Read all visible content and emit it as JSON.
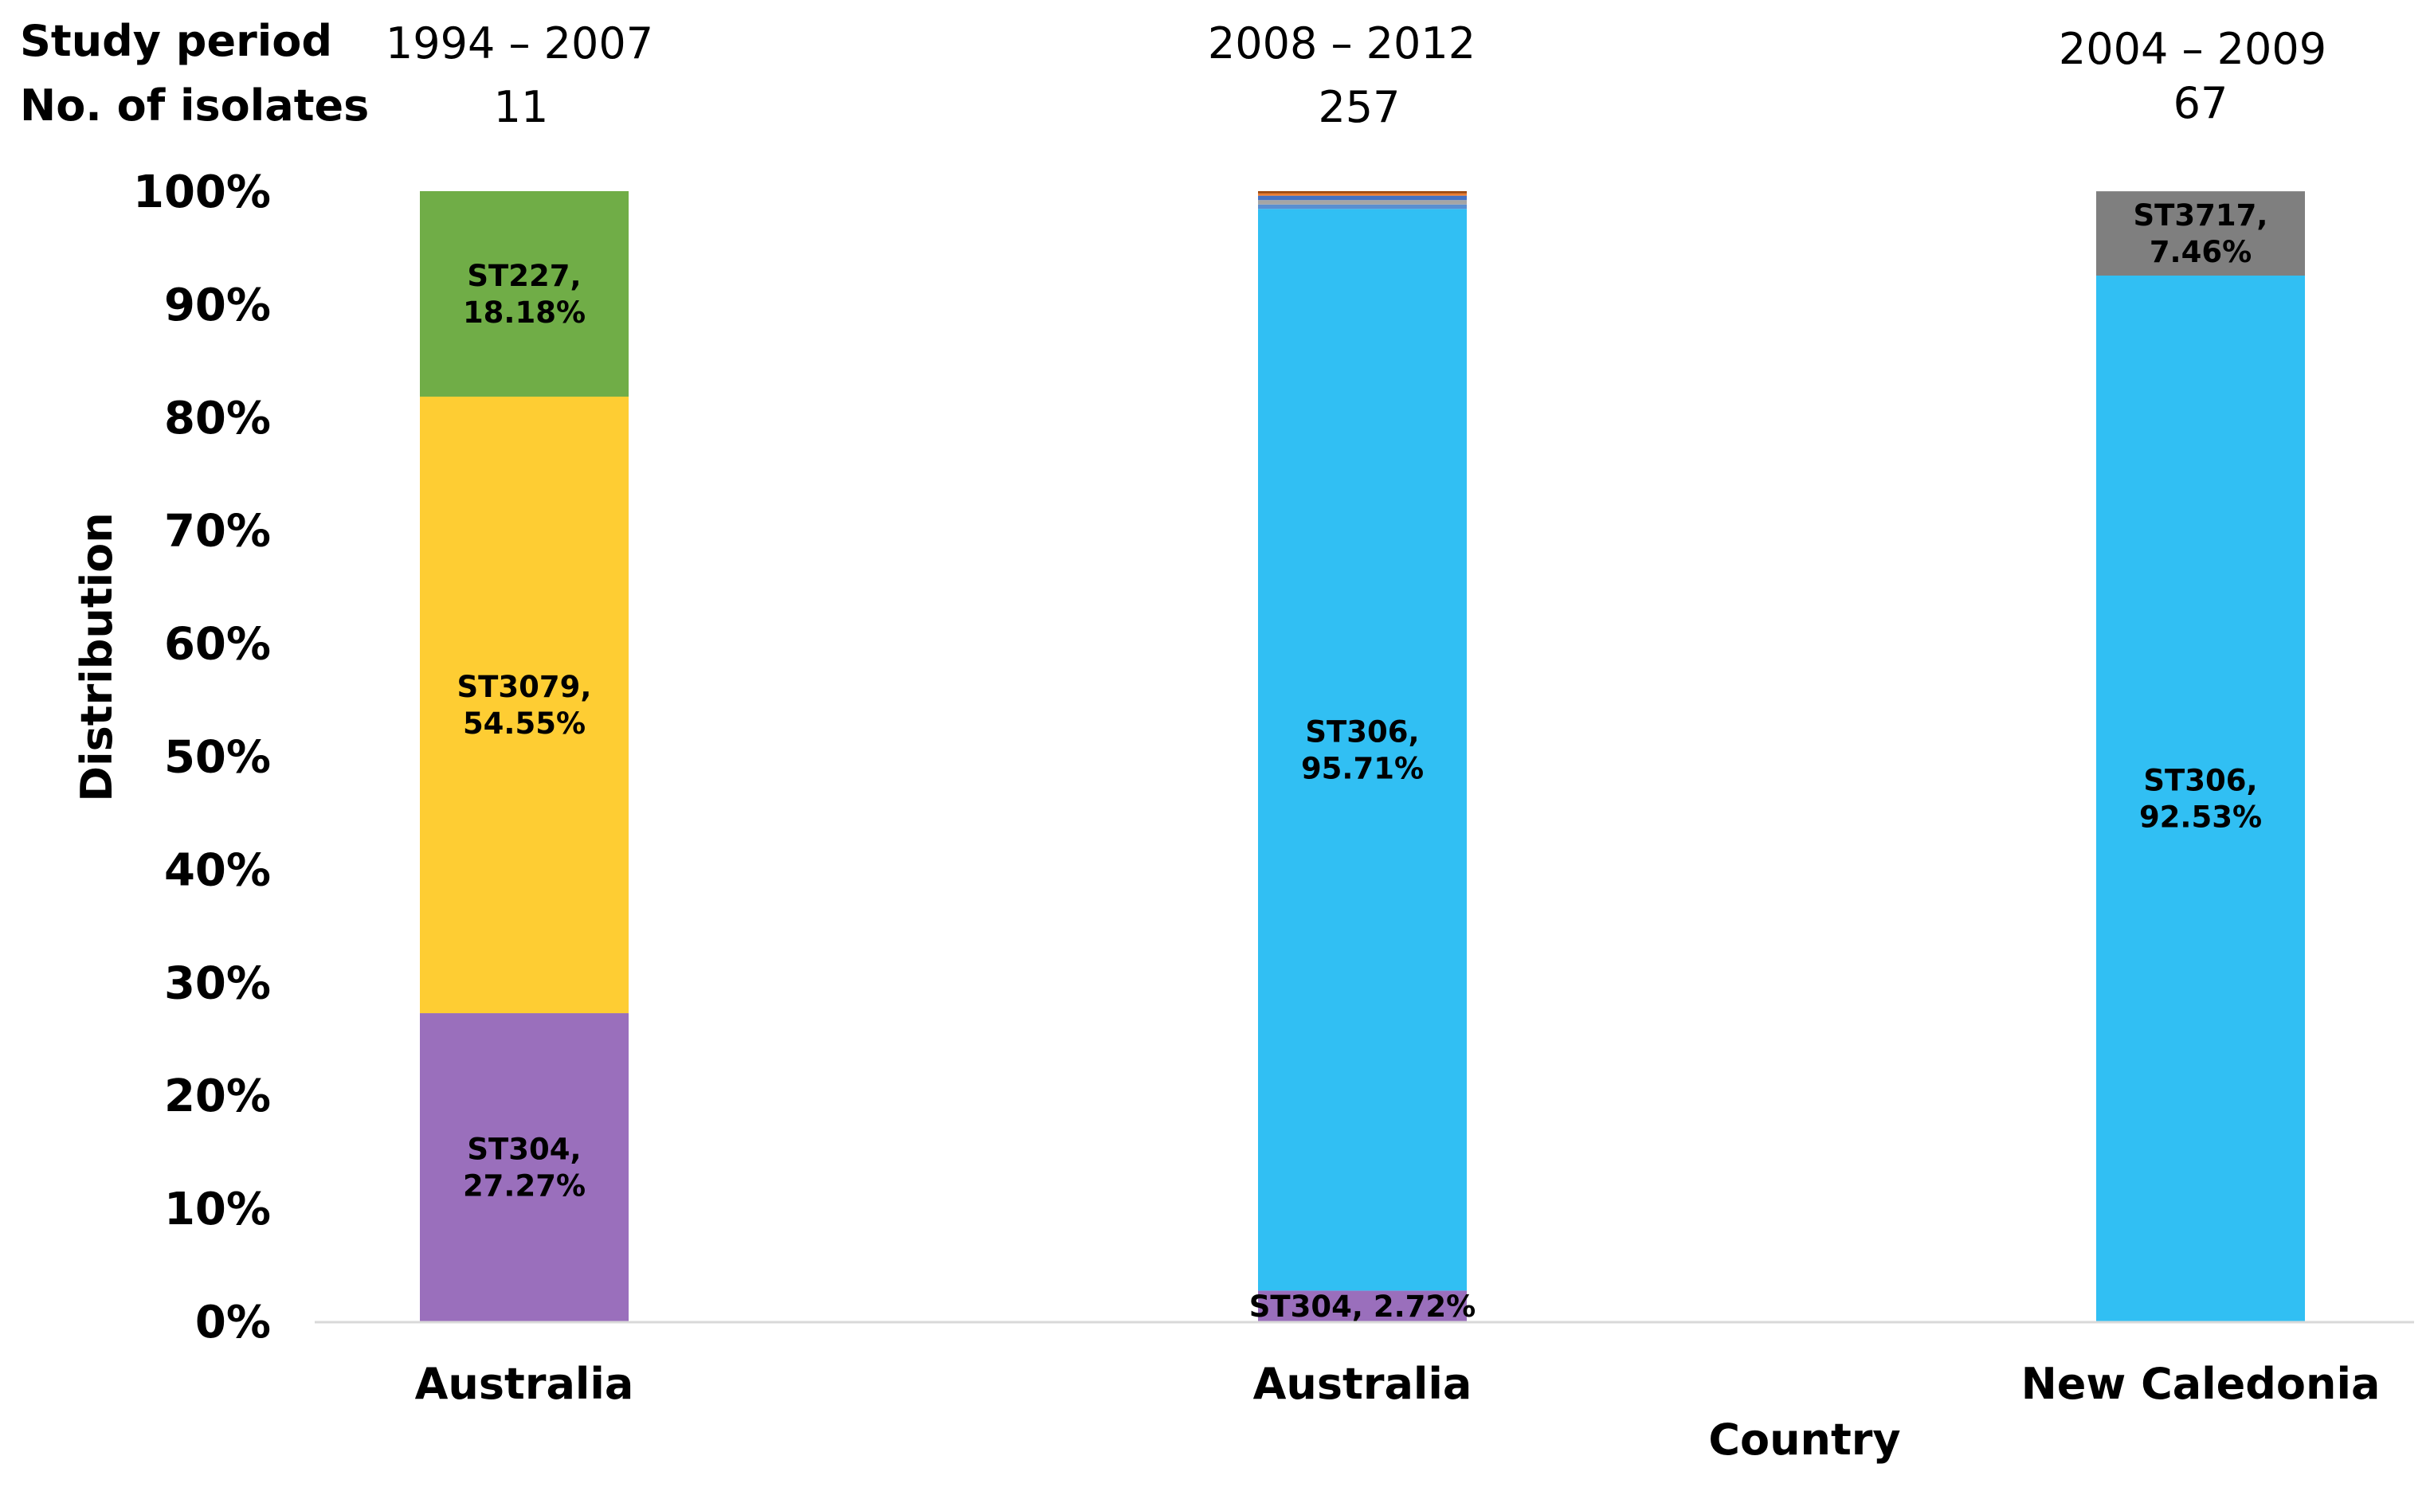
{
  "chart_data": {
    "type": "bar",
    "stacked": true,
    "header": {
      "row_labels": [
        "Study period",
        "No. of isolates"
      ],
      "periods": [
        "1994 – 2007",
        "2008 – 2012",
        "2004 – 2009"
      ],
      "isolates": [
        "11",
        "257",
        "67"
      ]
    },
    "categories": [
      "Australia",
      "Australia",
      "New Caledonia"
    ],
    "xlabel": "Country",
    "ylabel": "Distribution",
    "ylim": [
      0,
      100
    ],
    "yticks": [
      "0%",
      "10%",
      "20%",
      "30%",
      "40%",
      "50%",
      "60%",
      "70%",
      "80%",
      "90%",
      "100%"
    ],
    "grid": false,
    "legend": "none",
    "series": [
      {
        "name": "ST304",
        "color": "#9a6fbc",
        "values": [
          27.27,
          2.72,
          0
        ]
      },
      {
        "name": "ST3079",
        "color": "#fecd33",
        "values": [
          54.55,
          0,
          0
        ]
      },
      {
        "name": "ST227",
        "color": "#70ad47",
        "values": [
          18.18,
          0,
          0
        ]
      },
      {
        "name": "ST306",
        "color": "#31bff3",
        "values": [
          0,
          95.71,
          92.53
        ]
      },
      {
        "name": "",
        "color": "#5a8fd0",
        "values": [
          0,
          0.39,
          0
        ]
      },
      {
        "name": "",
        "color": "#a5a5a5",
        "values": [
          0,
          0.39,
          0
        ]
      },
      {
        "name": "",
        "color": "#4472c4",
        "values": [
          0,
          0.39,
          0
        ]
      },
      {
        "name": "",
        "color": "#ed7d31",
        "values": [
          0,
          0.2,
          0
        ]
      },
      {
        "name": "",
        "color": "#9e480e",
        "values": [
          0,
          0.2,
          0
        ]
      },
      {
        "name": "ST3717",
        "color": "#7f7f7f",
        "values": [
          0,
          0,
          7.46
        ]
      }
    ],
    "data_labels": [
      {
        "bar": 0,
        "series": 0,
        "lines": [
          "ST304,",
          "27.27%"
        ]
      },
      {
        "bar": 0,
        "series": 1,
        "lines": [
          "ST3079,",
          "54.55%"
        ]
      },
      {
        "bar": 0,
        "series": 2,
        "lines": [
          "ST227,",
          "18.18%"
        ]
      },
      {
        "bar": 1,
        "series": 0,
        "lines": [
          "ST304, 2.72%"
        ]
      },
      {
        "bar": 1,
        "series": 3,
        "lines": [
          "ST306,",
          "95.71%"
        ]
      },
      {
        "bar": 2,
        "series": 3,
        "lines": [
          "ST306,",
          "92.53%"
        ]
      },
      {
        "bar": 2,
        "series": 9,
        "lines": [
          "ST3717,",
          "7.46%"
        ]
      }
    ]
  }
}
